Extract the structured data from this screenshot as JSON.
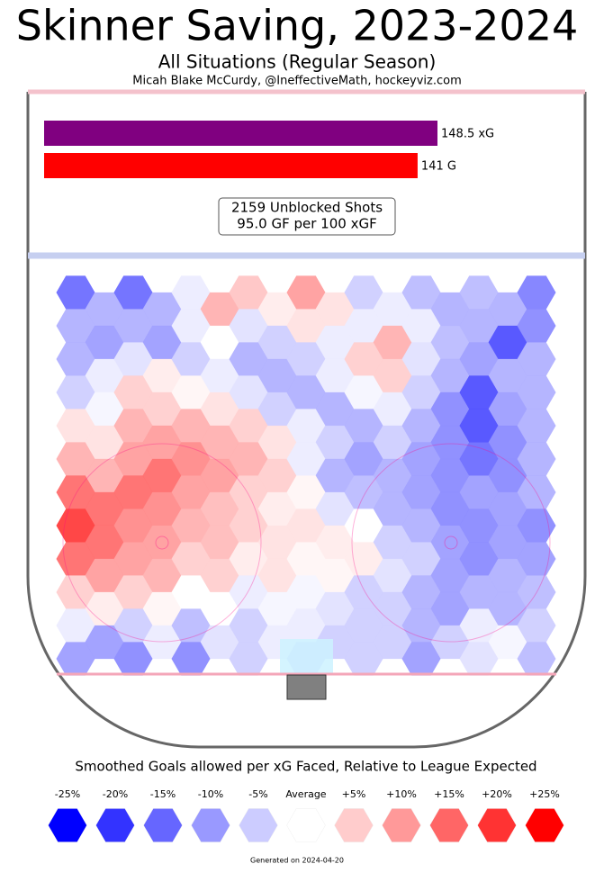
{
  "chart_data": {
    "type": "hexmap",
    "title": "Skinner Saving, 2023-2024",
    "subtitle": "All Situations (Regular Season)",
    "credit": "Micah Blake McCurdy, @IneffectiveMath, hockeyviz.com",
    "bars": {
      "categories": [
        "xG",
        "G"
      ],
      "values": [
        148.5,
        141
      ],
      "value_labels": [
        "148.5 xG",
        "141 G"
      ],
      "colors": [
        "#800080",
        "#ff0000"
      ]
    },
    "summary": [
      "2159 Unblocked Shots",
      "95.0 GF per 100 xGF"
    ],
    "hex_colors": {
      "negative": "#0000ff",
      "neutral": "#ffffff",
      "positive": "#ff0000"
    },
    "hex_values": [
      [
        -15,
        -8,
        -15,
        -8,
        -2,
        8,
        6,
        2,
        10,
        3,
        -5,
        -2,
        -7,
        -8,
        -7,
        -8,
        -13
      ],
      [
        -8,
        -10,
        -8,
        -10,
        -2,
        0,
        -3,
        -5,
        3,
        -2,
        -2,
        8,
        -2,
        -7,
        -8,
        -18,
        -12
      ],
      [
        -8,
        -2,
        -3,
        2,
        -5,
        -2,
        -8,
        -8,
        -5,
        -2,
        5,
        5,
        -3,
        -8,
        -10,
        -8,
        -8
      ],
      [
        -5,
        -1,
        5,
        5,
        1,
        3,
        -3,
        -5,
        -8,
        -8,
        -1,
        -2,
        -5,
        -12,
        -18,
        -10,
        -8
      ],
      [
        3,
        3,
        8,
        10,
        8,
        8,
        5,
        3,
        -2,
        -5,
        -8,
        -5,
        -8,
        -12,
        -18,
        -12,
        -8
      ],
      [
        8,
        8,
        10,
        15,
        12,
        10,
        8,
        5,
        -2,
        -8,
        -10,
        -8,
        -10,
        -12,
        -15,
        -12,
        -8
      ],
      [
        15,
        15,
        15,
        12,
        10,
        7,
        5,
        2,
        1,
        -3,
        -7,
        -8,
        -10,
        -12,
        -10,
        -10,
        -8
      ],
      [
        20,
        15,
        12,
        10,
        8,
        7,
        5,
        3,
        3,
        2,
        0,
        -5,
        -8,
        -10,
        -12,
        -10,
        -12
      ],
      [
        15,
        10,
        10,
        8,
        5,
        5,
        2,
        3,
        1,
        1,
        2,
        -3,
        -5,
        -10,
        -12,
        -8,
        -10
      ],
      [
        5,
        2,
        5,
        1,
        0,
        0,
        -2,
        -1,
        -1,
        -3,
        -5,
        -5,
        -8,
        -10,
        -8,
        -8,
        -7
      ],
      [
        -2,
        -10,
        -5,
        -2,
        -7,
        -3,
        -5,
        -2,
        -2,
        -5,
        -5,
        -5,
        -8,
        -5,
        -2,
        -1,
        -5
      ],
      [
        -10,
        null,
        -12,
        null,
        -12,
        null,
        -5,
        null,
        -5,
        null,
        -5,
        null,
        -10,
        null,
        -3,
        null,
        -7
      ]
    ],
    "legend_title": "Smoothed Goals allowed per xG Faced, Relative to League Expected",
    "legend_ticks": [
      {
        "value": -25,
        "label": "-25%"
      },
      {
        "value": -20,
        "label": "-20%"
      },
      {
        "value": -15,
        "label": "-15%"
      },
      {
        "value": -10,
        "label": "-10%"
      },
      {
        "value": -5,
        "label": "-5%"
      },
      {
        "value": 0,
        "label": "Average"
      },
      {
        "value": 5,
        "label": "+5%"
      },
      {
        "value": 10,
        "label": "+10%"
      },
      {
        "value": 15,
        "label": "+15%"
      },
      {
        "value": 20,
        "label": "+20%"
      },
      {
        "value": 25,
        "label": "+25%"
      }
    ],
    "footer": "Generated on 2024-04-20"
  }
}
